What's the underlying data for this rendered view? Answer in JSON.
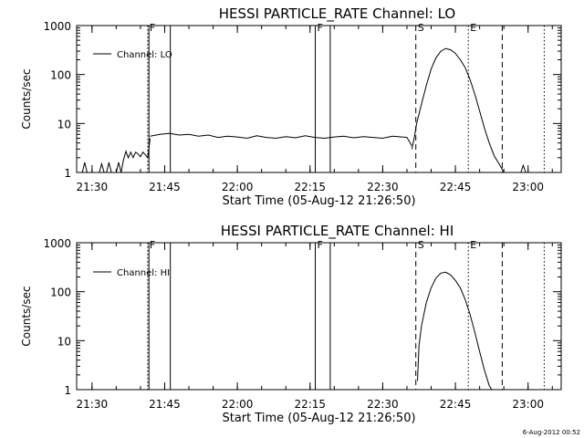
{
  "timestamp": "6-Aug-2012 00:52",
  "chart_data": [
    {
      "type": "line",
      "title": "HESSI PARTICLE_RATE Channel: LO",
      "xlabel": "Start Time (05-Aug-12 21:26:50)",
      "ylabel": "Counts/sec",
      "yscale": "log",
      "ylim": [
        1,
        1000
      ],
      "xlim": [
        "21:26:50",
        "23:06:50"
      ],
      "x_ticks": [
        "21:30",
        "21:45",
        "22:00",
        "22:15",
        "22:30",
        "22:45",
        "23:00"
      ],
      "y_ticks": [
        "1",
        "10",
        "100",
        "1000"
      ],
      "legend": {
        "placement": "top-left",
        "entries": [
          "Channel: LO"
        ]
      },
      "markers": [
        {
          "time": "21:41:30",
          "style": "dotted",
          "label": "F"
        },
        {
          "time": "21:41:45",
          "style": "solid",
          "label": ""
        },
        {
          "time": "21:46:10",
          "style": "solid",
          "label": ""
        },
        {
          "time": "22:16:05",
          "style": "solid",
          "label": "F"
        },
        {
          "time": "22:19:10",
          "style": "solid",
          "label": ""
        },
        {
          "time": "22:36:50",
          "style": "dashed",
          "label": "S"
        },
        {
          "time": "22:47:40",
          "style": "dotted",
          "label": "E"
        },
        {
          "time": "22:54:40",
          "style": "dashed",
          "label": ""
        },
        {
          "time": "23:03:20",
          "style": "dotted",
          "label": ""
        }
      ],
      "series": [
        {
          "name": "Channel: LO",
          "segments": [
            {
              "x": [
                "21:27:00",
                "21:28:00",
                "21:28:30",
                "21:29:00",
                "21:29:30",
                "21:30:00",
                "21:30:30",
                "21:31:00",
                "21:31:30",
                "21:32:00",
                "21:32:30",
                "21:33:00",
                "21:33:30",
                "21:34:00",
                "21:34:30",
                "21:35:00",
                "21:35:30",
                "21:36:00",
                "21:36:30",
                "21:37:00",
                "21:37:30",
                "21:38:00",
                "21:38:30",
                "21:39:00",
                "21:39:30",
                "21:40:00",
                "21:40:30",
                "21:41:00",
                "21:41:30",
                "21:42:00"
              ],
              "y": [
                1,
                1,
                1.6,
                1,
                1,
                1,
                1,
                1,
                1,
                1.5,
                1,
                1,
                1.6,
                1,
                1,
                1,
                1.6,
                1,
                1.8,
                2.7,
                2,
                2.6,
                2.0,
                2.6,
                2.4,
                2.1,
                2.6,
                2.3,
                2.0,
                5.0
              ]
            },
            {
              "x": [
                "21:42:00",
                "21:44:00",
                "21:46:00",
                "21:48:00",
                "21:50:00",
                "21:52:00",
                "21:54:00",
                "21:56:00",
                "21:58:00",
                "22:00:00",
                "22:02:00",
                "22:04:00",
                "22:06:00",
                "22:08:00",
                "22:10:00",
                "22:12:00",
                "22:14:00",
                "22:16:00",
                "22:18:00",
                "22:20:00",
                "22:22:00",
                "22:24:00",
                "22:26:00",
                "22:28:00",
                "22:30:00",
                "22:32:00",
                "22:34:00",
                "22:35:00",
                "22:36:00"
              ],
              "y": [
                5.5,
                6.0,
                6.3,
                5.8,
                6.0,
                5.5,
                5.8,
                5.2,
                5.5,
                5.3,
                5.0,
                5.6,
                5.2,
                5.0,
                5.4,
                5.1,
                5.6,
                5.2,
                5.0,
                5.3,
                5.5,
                5.1,
                5.4,
                5.2,
                5.0,
                5.5,
                5.3,
                5.2,
                3.5
              ]
            },
            {
              "x": [
                "22:36:00",
                "22:36:30",
                "22:37:00",
                "22:38:00",
                "22:39:00",
                "22:40:00",
                "22:41:00",
                "22:42:00",
                "22:43:00",
                "22:44:00",
                "22:45:00",
                "22:46:00",
                "22:47:00",
                "22:48:00",
                "22:49:00",
                "22:50:00",
                "22:51:00",
                "22:52:00",
                "22:53:00",
                "22:54:00",
                "22:55:00"
              ],
              "y": [
                3.0,
                5,
                10,
                25,
                60,
                130,
                220,
                300,
                340,
                320,
                270,
                200,
                140,
                80,
                40,
                18,
                8,
                4,
                2.2,
                1.5,
                1
              ]
            },
            {
              "x": [
                "22:58:30",
                "22:59:00",
                "22:59:30"
              ],
              "y": [
                1,
                1.4,
                1
              ]
            }
          ]
        }
      ]
    },
    {
      "type": "line",
      "title": "HESSI PARTICLE_RATE Channel: HI",
      "xlabel": "Start Time (05-Aug-12 21:26:50)",
      "ylabel": "Counts/sec",
      "yscale": "log",
      "ylim": [
        1,
        1000
      ],
      "xlim": [
        "21:26:50",
        "23:06:50"
      ],
      "x_ticks": [
        "21:30",
        "21:45",
        "22:00",
        "22:15",
        "22:30",
        "22:45",
        "23:00"
      ],
      "y_ticks": [
        "1",
        "10",
        "100",
        "1000"
      ],
      "legend": {
        "placement": "top-left",
        "entries": [
          "Channel: HI"
        ]
      },
      "markers": [
        {
          "time": "21:41:30",
          "style": "dotted",
          "label": "F"
        },
        {
          "time": "21:41:45",
          "style": "solid",
          "label": ""
        },
        {
          "time": "21:46:10",
          "style": "solid",
          "label": ""
        },
        {
          "time": "22:16:05",
          "style": "solid",
          "label": "F"
        },
        {
          "time": "22:19:10",
          "style": "solid",
          "label": ""
        },
        {
          "time": "22:36:50",
          "style": "dashed",
          "label": "S"
        },
        {
          "time": "22:47:40",
          "style": "dotted",
          "label": "E"
        },
        {
          "time": "22:54:40",
          "style": "dashed",
          "label": ""
        },
        {
          "time": "23:03:20",
          "style": "dotted",
          "label": ""
        }
      ],
      "series": [
        {
          "name": "Channel: HI",
          "segments": [
            {
              "x": [
                "22:37:10",
                "22:37:30",
                "22:38:00",
                "22:39:00",
                "22:40:00",
                "22:41:00",
                "22:42:00",
                "22:43:00",
                "22:44:00",
                "22:45:00",
                "22:46:00",
                "22:47:00",
                "22:48:00",
                "22:49:00",
                "22:50:00",
                "22:51:00",
                "22:52:00",
                "22:52:30"
              ],
              "y": [
                1.5,
                8,
                20,
                60,
                120,
                190,
                240,
                250,
                220,
                170,
                120,
                70,
                35,
                15,
                6,
                2.5,
                1.2,
                1
              ]
            }
          ]
        }
      ]
    }
  ]
}
